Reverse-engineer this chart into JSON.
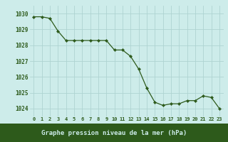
{
  "hours": [
    0,
    1,
    2,
    3,
    4,
    5,
    6,
    7,
    8,
    9,
    10,
    11,
    12,
    13,
    14,
    15,
    16,
    17,
    18,
    19,
    20,
    21,
    22,
    23
  ],
  "pressure": [
    1029.8,
    1029.8,
    1029.7,
    1028.9,
    1028.3,
    1028.3,
    1028.3,
    1028.3,
    1028.3,
    1028.3,
    1027.7,
    1027.7,
    1027.3,
    1026.5,
    1025.3,
    1024.4,
    1024.2,
    1024.3,
    1024.3,
    1024.5,
    1024.5,
    1024.8,
    1024.7,
    1024.0
  ],
  "line_color": "#2d5a1b",
  "marker_color": "#2d5a1b",
  "bg_color": "#cdecea",
  "grid_color": "#aed4d1",
  "tick_label_color": "#2d5a1b",
  "xlabel": "Graphe pression niveau de la mer (hPa)",
  "ylim_min": 1023.5,
  "ylim_max": 1030.5,
  "bottom_bar_color": "#2d5a1b",
  "bottom_bar_text_color": "#cdecea",
  "yticks": [
    1024,
    1025,
    1026,
    1027,
    1028,
    1029,
    1030
  ]
}
